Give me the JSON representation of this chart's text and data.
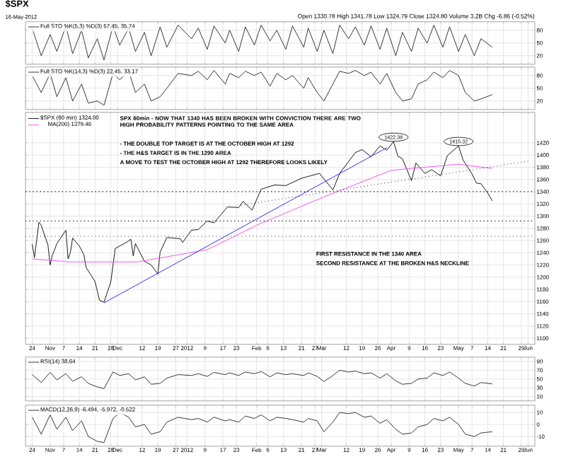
{
  "chart_data": [
    {
      "type": "line",
      "title": "$SPX",
      "subtitle": "16-May-2012",
      "annotations": [
        "Open 1330.78 High 1341.78 Low 1324.79 Close 1324.80 Volume 3.2B Chg -6.86 (-0.52%)"
      ],
      "xlim": [
        "2011-10-21",
        "2012-06-04"
      ],
      "ylim": [
        0,
        100
      ],
      "yticks": [
        20,
        50,
        80
      ],
      "grid": true,
      "legend": "top left",
      "tick_labels": "y",
      "xticks": [
        {
          "value": "2011-10-24",
          "label": null
        },
        {
          "value": "2011-11-01",
          "label": null
        },
        {
          "value": "2011-11-07",
          "label": null
        },
        {
          "value": "2011-11-14",
          "label": null
        },
        {
          "value": "2011-11-21",
          "label": null
        },
        {
          "value": "2011-11-28",
          "label": null
        },
        {
          "value": "2011-12-01",
          "label": null
        },
        {
          "value": "2011-12-12",
          "label": null
        },
        {
          "value": "2011-12-19",
          "label": null
        },
        {
          "value": "2011-12-27",
          "label": null
        },
        {
          "value": "2012-01-01",
          "label": null
        },
        {
          "value": "2012-01-09",
          "label": null
        },
        {
          "value": "2012-01-17",
          "label": null
        },
        {
          "value": "2012-01-23",
          "label": null
        },
        {
          "value": "2012-02-01",
          "label": null
        },
        {
          "value": "2012-02-06",
          "label": null
        },
        {
          "value": "2012-02-13",
          "label": null
        },
        {
          "value": "2012-02-21",
          "label": null
        },
        {
          "value": "2012-02-27",
          "label": null
        },
        {
          "value": "2012-03-01",
          "label": null
        },
        {
          "value": "2012-03-12",
          "label": null
        },
        {
          "value": "2012-03-19",
          "label": null
        },
        {
          "value": "2012-03-26",
          "label": null
        },
        {
          "value": "2012-04-01",
          "label": null
        },
        {
          "value": "2012-04-09",
          "label": null
        },
        {
          "value": "2012-04-16",
          "label": null
        },
        {
          "value": "2012-04-23",
          "label": null
        },
        {
          "value": "2012-05-01",
          "label": null
        },
        {
          "value": "2012-05-07",
          "label": null
        },
        {
          "value": "2012-05-14",
          "label": null
        },
        {
          "value": "2012-05-21",
          "label": null
        },
        {
          "value": "2012-05-29",
          "label": null
        },
        {
          "value": "2012-06-01",
          "label": null
        }
      ],
      "x": [
        "2011-10-24",
        "2011-10-28",
        "2011-11-01",
        "2011-11-04",
        "2011-11-08",
        "2011-11-11",
        "2011-11-15",
        "2011-11-18",
        "2011-11-22",
        "2011-11-25",
        "2011-11-29",
        "2011-12-02",
        "2011-12-06",
        "2011-12-09",
        "2011-12-13",
        "2011-12-16",
        "2011-12-20",
        "2011-12-23",
        "2011-12-28",
        "2012-01-03",
        "2012-01-06",
        "2012-01-10",
        "2012-01-13",
        "2012-01-18",
        "2012-01-20",
        "2012-01-24",
        "2012-01-27",
        "2012-01-31",
        "2012-02-03",
        "2012-02-07",
        "2012-02-10",
        "2012-02-14",
        "2012-02-17",
        "2012-02-22",
        "2012-02-24",
        "2012-02-28",
        "2012-03-02",
        "2012-03-06",
        "2012-03-09",
        "2012-03-13",
        "2012-03-16",
        "2012-03-20",
        "2012-03-23",
        "2012-03-27",
        "2012-03-30",
        "2012-04-03",
        "2012-04-06",
        "2012-04-10",
        "2012-04-13",
        "2012-04-17",
        "2012-04-20",
        "2012-04-24",
        "2012-04-27",
        "2012-05-01",
        "2012-05-04",
        "2012-05-08",
        "2012-05-11",
        "2012-05-16"
      ],
      "series": [
        {
          "name": "Full STO %K(5,3) %D(3) 57.45, 35.74",
          "color": "#222222",
          "values": [
            85,
            20,
            70,
            30,
            90,
            25,
            80,
            15,
            60,
            10,
            90,
            45,
            85,
            30,
            75,
            20,
            88,
            40,
            92,
            60,
            85,
            35,
            90,
            50,
            80,
            30,
            88,
            45,
            92,
            55,
            80,
            35,
            90,
            40,
            85,
            30,
            80,
            25,
            92,
            60,
            88,
            45,
            90,
            35,
            85,
            20,
            75,
            30,
            85,
            50,
            92,
            40,
            88,
            30,
            70,
            20,
            60,
            40
          ]
        }
      ]
    },
    {
      "type": "line",
      "xlim": [
        "2011-10-21",
        "2012-06-04"
      ],
      "ylim": [
        0,
        100
      ],
      "yticks": [
        20,
        50,
        80
      ],
      "grid": true,
      "legend": "top left",
      "tick_labels": "y",
      "xticks": [
        {
          "value": "2011-10-24",
          "label": null
        },
        {
          "value": "2011-11-01",
          "label": null
        },
        {
          "value": "2011-11-07",
          "label": null
        },
        {
          "value": "2011-11-14",
          "label": null
        },
        {
          "value": "2011-11-21",
          "label": null
        },
        {
          "value": "2011-11-28",
          "label": null
        },
        {
          "value": "2011-12-01",
          "label": null
        },
        {
          "value": "2011-12-12",
          "label": null
        },
        {
          "value": "2011-12-19",
          "label": null
        },
        {
          "value": "2011-12-27",
          "label": null
        },
        {
          "value": "2012-01-01",
          "label": null
        },
        {
          "value": "2012-01-09",
          "label": null
        },
        {
          "value": "2012-01-17",
          "label": null
        },
        {
          "value": "2012-01-23",
          "label": null
        },
        {
          "value": "2012-02-01",
          "label": null
        },
        {
          "value": "2012-02-06",
          "label": null
        },
        {
          "value": "2012-02-13",
          "label": null
        },
        {
          "value": "2012-02-21",
          "label": null
        },
        {
          "value": "2012-02-27",
          "label": null
        },
        {
          "value": "2012-03-01",
          "label": null
        },
        {
          "value": "2012-03-12",
          "label": null
        },
        {
          "value": "2012-03-19",
          "label": null
        },
        {
          "value": "2012-03-26",
          "label": null
        },
        {
          "value": "2012-04-01",
          "label": null
        },
        {
          "value": "2012-04-09",
          "label": null
        },
        {
          "value": "2012-04-16",
          "label": null
        },
        {
          "value": "2012-04-23",
          "label": null
        },
        {
          "value": "2012-05-01",
          "label": null
        },
        {
          "value": "2012-05-07",
          "label": null
        },
        {
          "value": "2012-05-14",
          "label": null
        },
        {
          "value": "2012-05-21",
          "label": null
        },
        {
          "value": "2012-05-29",
          "label": null
        },
        {
          "value": "2012-06-01",
          "label": null
        }
      ],
      "x": [
        "2011-10-24",
        "2011-10-28",
        "2011-11-01",
        "2011-11-04",
        "2011-11-08",
        "2011-11-11",
        "2011-11-15",
        "2011-11-18",
        "2011-11-22",
        "2011-11-25",
        "2011-11-29",
        "2011-12-02",
        "2011-12-06",
        "2011-12-09",
        "2011-12-13",
        "2011-12-16",
        "2011-12-20",
        "2011-12-23",
        "2011-12-28",
        "2012-01-03",
        "2012-01-06",
        "2012-01-10",
        "2012-01-13",
        "2012-01-18",
        "2012-01-20",
        "2012-01-24",
        "2012-01-27",
        "2012-01-31",
        "2012-02-03",
        "2012-02-07",
        "2012-02-10",
        "2012-02-14",
        "2012-02-17",
        "2012-02-22",
        "2012-02-24",
        "2012-02-28",
        "2012-03-02",
        "2012-03-06",
        "2012-03-09",
        "2012-03-13",
        "2012-03-16",
        "2012-03-20",
        "2012-03-23",
        "2012-03-27",
        "2012-03-30",
        "2012-04-03",
        "2012-04-06",
        "2012-04-10",
        "2012-04-13",
        "2012-04-17",
        "2012-04-20",
        "2012-04-24",
        "2012-04-27",
        "2012-05-01",
        "2012-05-04",
        "2012-05-08",
        "2012-05-11",
        "2012-05-16"
      ],
      "series": [
        {
          "name": "Full STO %K(14,3) %D(3) 22.45, 33.17",
          "color": "#222222",
          "values": [
            80,
            40,
            85,
            30,
            75,
            20,
            60,
            15,
            20,
            10,
            85,
            70,
            90,
            40,
            60,
            20,
            30,
            50,
            85,
            80,
            90,
            70,
            92,
            60,
            85,
            75,
            90,
            80,
            88,
            55,
            85,
            70,
            80,
            50,
            75,
            40,
            20,
            60,
            90,
            85,
            92,
            80,
            88,
            60,
            85,
            40,
            20,
            25,
            60,
            70,
            88,
            75,
            92,
            80,
            40,
            20,
            25,
            35
          ]
        }
      ]
    },
    {
      "type": "line",
      "annotations": [
        "SPX 60min - NOW THAT 1340 HAS BEEN BROKEN WITH CONVICTION THERE ARE TWO HIGH PROBABILITY PATTERNS POINTING TO THE SAME AREA",
        "- THE DOUBLE TOP TARGET IS AT THE OCTOBER HIGH AT 1292",
        "- THE H&S TARGET IS IN THE 1290 AREA",
        "A MOVE TO TEST THE OCTOBER HIGH AT 1292 THEREFORE LOOKS LIKELY",
        "FIRST RESISTANCE IN THE 1340 AREA",
        "SECOND RESISTANCE AT THE BROKEN H&S NECKLINE",
        {
          "text": "1422.38",
          "x": "2012-04-02",
          "y": 1422
        },
        {
          "text": "1415.32",
          "x": "2012-05-01",
          "y": 1415
        }
      ],
      "xlim": [
        "2011-10-21",
        "2012-06-04"
      ],
      "ylim": [
        1090,
        1470
      ],
      "yticks": [
        1100,
        1120,
        1140,
        1160,
        1180,
        1200,
        1220,
        1240,
        1260,
        1280,
        1300,
        1320,
        1340,
        1360,
        1380,
        1400,
        1420
      ],
      "grid": true,
      "legend": "top left",
      "xticks": [
        {
          "value": "2011-10-24",
          "label": "24"
        },
        {
          "value": "2011-11-01",
          "label": "Nov"
        },
        {
          "value": "2011-11-07",
          "label": "7"
        },
        {
          "value": "2011-11-14",
          "label": "14"
        },
        {
          "value": "2011-11-21",
          "label": "21"
        },
        {
          "value": "2011-11-28",
          "label": "28"
        },
        {
          "value": "2011-12-01",
          "label": "Dec"
        },
        {
          "value": "2011-12-12",
          "label": "12"
        },
        {
          "value": "2011-12-19",
          "label": "19"
        },
        {
          "value": "2011-12-27",
          "label": "27"
        },
        {
          "value": "2012-01-01",
          "label": "2012"
        },
        {
          "value": "2012-01-09",
          "label": "9"
        },
        {
          "value": "2012-01-17",
          "label": "17"
        },
        {
          "value": "2012-01-23",
          "label": "23"
        },
        {
          "value": "2012-02-01",
          "label": "Feb"
        },
        {
          "value": "2012-02-06",
          "label": "6"
        },
        {
          "value": "2012-02-13",
          "label": "13"
        },
        {
          "value": "2012-02-21",
          "label": "21"
        },
        {
          "value": "2012-02-27",
          "label": "27"
        },
        {
          "value": "2012-03-01",
          "label": "Mar"
        },
        {
          "value": "2012-03-12",
          "label": "12"
        },
        {
          "value": "2012-03-19",
          "label": "19"
        },
        {
          "value": "2012-03-26",
          "label": "26"
        },
        {
          "value": "2012-04-01",
          "label": "Apr"
        },
        {
          "value": "2012-04-09",
          "label": "9"
        },
        {
          "value": "2012-04-16",
          "label": "16"
        },
        {
          "value": "2012-04-23",
          "label": "23"
        },
        {
          "value": "2012-05-01",
          "label": "May"
        },
        {
          "value": "2012-05-07",
          "label": "7"
        },
        {
          "value": "2012-05-14",
          "label": "14"
        },
        {
          "value": "2012-05-21",
          "label": "21"
        },
        {
          "value": "2012-05-29",
          "label": "29"
        },
        {
          "value": "2012-06-01",
          "label": "Jun"
        }
      ],
      "ref_lines": [
        {
          "axis": "y",
          "value": 1340,
          "line_style": "dotted",
          "color": "#000000"
        },
        {
          "axis": "y",
          "value": 1292,
          "line_style": "dotted",
          "color": "#000000"
        },
        {
          "axis": "y",
          "value": 1267,
          "line_style": "dotted",
          "color": "#555555"
        }
      ],
      "series": [
        {
          "name": "$SPX (60 min) 1324.80",
          "color": "#000000",
          "x": [
            "2011-10-24",
            "2011-10-25",
            "2011-10-27",
            "2011-10-28",
            "2011-10-31",
            "2011-11-01",
            "2011-11-02",
            "2011-11-04",
            "2011-11-08",
            "2011-11-09",
            "2011-11-10",
            "2011-11-11",
            "2011-11-14",
            "2011-11-16",
            "2011-11-17",
            "2011-11-21",
            "2011-11-23",
            "2011-11-25",
            "2011-11-28",
            "2011-11-30",
            "2011-12-05",
            "2011-12-07",
            "2011-12-08",
            "2011-12-09",
            "2011-12-13",
            "2011-12-16",
            "2011-12-19",
            "2011-12-20",
            "2011-12-23",
            "2011-12-29",
            "2011-12-30",
            "2012-01-03",
            "2012-01-06",
            "2012-01-10",
            "2012-01-13",
            "2012-01-19",
            "2012-01-24",
            "2012-01-26",
            "2012-01-30",
            "2012-02-03",
            "2012-02-09",
            "2012-02-14",
            "2012-02-21",
            "2012-02-24",
            "2012-02-29",
            "2012-03-06",
            "2012-03-09",
            "2012-03-16",
            "2012-03-19",
            "2012-03-23",
            "2012-03-27",
            "2012-03-30",
            "2012-04-02",
            "2012-04-04",
            "2012-04-06",
            "2012-04-10",
            "2012-04-12",
            "2012-04-16",
            "2012-04-19",
            "2012-04-23",
            "2012-04-26",
            "2012-05-01",
            "2012-05-03",
            "2012-05-07",
            "2012-05-09",
            "2012-05-11",
            "2012-05-14",
            "2012-05-16"
          ],
          "values": [
            1254,
            1232,
            1290,
            1285,
            1253,
            1220,
            1236,
            1255,
            1277,
            1230,
            1240,
            1264,
            1251,
            1237,
            1216,
            1193,
            1162,
            1159,
            1192,
            1247,
            1257,
            1262,
            1235,
            1255,
            1226,
            1220,
            1205,
            1241,
            1265,
            1263,
            1257,
            1277,
            1278,
            1292,
            1289,
            1315,
            1314,
            1324,
            1310,
            1344,
            1351,
            1350,
            1362,
            1365,
            1370,
            1343,
            1370,
            1404,
            1409,
            1397,
            1415,
            1408,
            1422,
            1398,
            1394,
            1358,
            1387,
            1370,
            1376,
            1366,
            1399,
            1415,
            1392,
            1369,
            1354,
            1353,
            1338,
            1325
          ]
        },
        {
          "name": "MA(200) 1379.46",
          "color": "#ee44ee",
          "x": [
            "2011-10-24",
            "2011-11-10",
            "2011-12-10",
            "2012-01-10",
            "2012-02-01",
            "2012-03-01",
            "2012-04-01",
            "2012-05-01",
            "2012-05-16"
          ],
          "values": [
            1230,
            1225,
            1225,
            1245,
            1285,
            1330,
            1375,
            1385,
            1378
          ]
        },
        {
          "color": "#1a1aee",
          "x": [
            "2011-11-25",
            "2012-03-30"
          ],
          "values": [
            1158,
            1412
          ]
        },
        {
          "color": "#000000",
          "line_style": "dotted",
          "x": [
            "2012-01-25",
            "2012-06-01"
          ],
          "values": [
            1318,
            1390
          ]
        }
      ]
    },
    {
      "type": "line",
      "xlim": [
        "2011-10-21",
        "2012-06-04"
      ],
      "ylim": [
        0,
        100
      ],
      "yticks": [
        10,
        30,
        50,
        70,
        90
      ],
      "grid": true,
      "legend": "top left",
      "tick_labels": "y",
      "xticks": [
        {
          "value": "2011-10-24",
          "label": null
        },
        {
          "value": "2011-11-01",
          "label": null
        },
        {
          "value": "2011-11-07",
          "label": null
        },
        {
          "value": "2011-11-14",
          "label": null
        },
        {
          "value": "2011-11-21",
          "label": null
        },
        {
          "value": "2011-11-28",
          "label": null
        },
        {
          "value": "2011-12-01",
          "label": null
        },
        {
          "value": "2011-12-12",
          "label": null
        },
        {
          "value": "2011-12-19",
          "label": null
        },
        {
          "value": "2011-12-27",
          "label": null
        },
        {
          "value": "2012-01-01",
          "label": null
        },
        {
          "value": "2012-01-09",
          "label": null
        },
        {
          "value": "2012-01-17",
          "label": null
        },
        {
          "value": "2012-01-23",
          "label": null
        },
        {
          "value": "2012-02-01",
          "label": null
        },
        {
          "value": "2012-02-06",
          "label": null
        },
        {
          "value": "2012-02-13",
          "label": null
        },
        {
          "value": "2012-02-21",
          "label": null
        },
        {
          "value": "2012-02-27",
          "label": null
        },
        {
          "value": "2012-03-01",
          "label": null
        },
        {
          "value": "2012-03-12",
          "label": null
        },
        {
          "value": "2012-03-19",
          "label": null
        },
        {
          "value": "2012-03-26",
          "label": null
        },
        {
          "value": "2012-04-01",
          "label": null
        },
        {
          "value": "2012-04-09",
          "label": null
        },
        {
          "value": "2012-04-16",
          "label": null
        },
        {
          "value": "2012-04-23",
          "label": null
        },
        {
          "value": "2012-05-01",
          "label": null
        },
        {
          "value": "2012-05-07",
          "label": null
        },
        {
          "value": "2012-05-14",
          "label": null
        },
        {
          "value": "2012-05-21",
          "label": null
        },
        {
          "value": "2012-05-29",
          "label": null
        },
        {
          "value": "2012-06-01",
          "label": null
        }
      ],
      "x": [
        "2011-10-24",
        "2011-10-28",
        "2011-11-01",
        "2011-11-04",
        "2011-11-08",
        "2011-11-11",
        "2011-11-15",
        "2011-11-18",
        "2011-11-22",
        "2011-11-25",
        "2011-11-29",
        "2011-12-02",
        "2011-12-06",
        "2011-12-09",
        "2011-12-13",
        "2011-12-16",
        "2011-12-20",
        "2011-12-23",
        "2011-12-28",
        "2012-01-03",
        "2012-01-06",
        "2012-01-10",
        "2012-01-13",
        "2012-01-18",
        "2012-01-20",
        "2012-01-24",
        "2012-01-27",
        "2012-01-31",
        "2012-02-03",
        "2012-02-07",
        "2012-02-10",
        "2012-02-14",
        "2012-02-17",
        "2012-02-22",
        "2012-02-24",
        "2012-02-28",
        "2012-03-02",
        "2012-03-06",
        "2012-03-09",
        "2012-03-13",
        "2012-03-16",
        "2012-03-20",
        "2012-03-23",
        "2012-03-27",
        "2012-03-30",
        "2012-04-03",
        "2012-04-06",
        "2012-04-10",
        "2012-04-13",
        "2012-04-17",
        "2012-04-20",
        "2012-04-24",
        "2012-04-27",
        "2012-05-01",
        "2012-05-04",
        "2012-05-08",
        "2012-05-11",
        "2012-05-16"
      ],
      "series": [
        {
          "name": "RSI(14) 38.64",
          "color": "#222222",
          "values": [
            60,
            42,
            65,
            48,
            62,
            45,
            55,
            40,
            32,
            28,
            66,
            58,
            62,
            48,
            55,
            38,
            40,
            52,
            60,
            58,
            62,
            56,
            65,
            60,
            64,
            58,
            66,
            62,
            67,
            55,
            64,
            60,
            62,
            58,
            64,
            56,
            44,
            58,
            70,
            66,
            68,
            62,
            64,
            52,
            62,
            46,
            38,
            40,
            50,
            52,
            64,
            58,
            66,
            52,
            40,
            34,
            42,
            39
          ]
        }
      ]
    },
    {
      "type": "line",
      "xlim": [
        "2011-10-21",
        "2012-06-04"
      ],
      "ylim": [
        -18,
        16
      ],
      "yticks": [
        -10,
        0,
        10
      ],
      "grid": true,
      "legend": "top left",
      "xticks": [
        {
          "value": "2011-10-24",
          "label": "24"
        },
        {
          "value": "2011-11-01",
          "label": "Nov"
        },
        {
          "value": "2011-11-07",
          "label": "7"
        },
        {
          "value": "2011-11-14",
          "label": "14"
        },
        {
          "value": "2011-11-21",
          "label": "21"
        },
        {
          "value": "2011-11-28",
          "label": "28"
        },
        {
          "value": "2011-12-01",
          "label": "Dec"
        },
        {
          "value": "2011-12-12",
          "label": "12"
        },
        {
          "value": "2011-12-19",
          "label": "19"
        },
        {
          "value": "2011-12-27",
          "label": "27"
        },
        {
          "value": "2012-01-01",
          "label": "2012"
        },
        {
          "value": "2012-01-09",
          "label": "9"
        },
        {
          "value": "2012-01-17",
          "label": "17"
        },
        {
          "value": "2012-01-23",
          "label": "23"
        },
        {
          "value": "2012-02-01",
          "label": "Feb"
        },
        {
          "value": "2012-02-06",
          "label": "6"
        },
        {
          "value": "2012-02-13",
          "label": "13"
        },
        {
          "value": "2012-02-21",
          "label": "21"
        },
        {
          "value": "2012-02-27",
          "label": "27"
        },
        {
          "value": "2012-03-01",
          "label": "Mar"
        },
        {
          "value": "2012-03-12",
          "label": "12"
        },
        {
          "value": "2012-03-19",
          "label": "19"
        },
        {
          "value": "2012-03-26",
          "label": "26"
        },
        {
          "value": "2012-04-01",
          "label": "Apr"
        },
        {
          "value": "2012-04-09",
          "label": "9"
        },
        {
          "value": "2012-04-16",
          "label": "16"
        },
        {
          "value": "2012-04-23",
          "label": "23"
        },
        {
          "value": "2012-05-01",
          "label": "May"
        },
        {
          "value": "2012-05-07",
          "label": "7"
        },
        {
          "value": "2012-05-14",
          "label": "14"
        },
        {
          "value": "2012-05-21",
          "label": "21"
        },
        {
          "value": "2012-05-29",
          "label": "29"
        },
        {
          "value": "2012-06-01",
          "label": "Jun"
        }
      ],
      "x": [
        "2011-10-24",
        "2011-10-28",
        "2011-11-01",
        "2011-11-04",
        "2011-11-08",
        "2011-11-11",
        "2011-11-15",
        "2011-11-18",
        "2011-11-22",
        "2011-11-25",
        "2011-11-29",
        "2011-12-02",
        "2011-12-06",
        "2011-12-09",
        "2011-12-13",
        "2011-12-16",
        "2011-12-20",
        "2011-12-23",
        "2011-12-28",
        "2012-01-03",
        "2012-01-06",
        "2012-01-10",
        "2012-01-13",
        "2012-01-18",
        "2012-01-20",
        "2012-01-24",
        "2012-01-27",
        "2012-01-31",
        "2012-02-03",
        "2012-02-07",
        "2012-02-10",
        "2012-02-14",
        "2012-02-17",
        "2012-02-22",
        "2012-02-24",
        "2012-02-28",
        "2012-03-02",
        "2012-03-06",
        "2012-03-09",
        "2012-03-13",
        "2012-03-16",
        "2012-03-20",
        "2012-03-23",
        "2012-03-27",
        "2012-03-30",
        "2012-04-03",
        "2012-04-06",
        "2012-04-10",
        "2012-04-13",
        "2012-04-17",
        "2012-04-20",
        "2012-04-24",
        "2012-04-27",
        "2012-05-01",
        "2012-05-04",
        "2012-05-08",
        "2012-05-11",
        "2012-05-16"
      ],
      "series": [
        {
          "name": "MACD(12,26,9) -6.494, -5.972, -0.522",
          "color": "#222222",
          "values": [
            6,
            -8,
            8,
            -4,
            6,
            -5,
            3,
            -10,
            -14,
            -15,
            5,
            10,
            6,
            -2,
            0,
            -8,
            -6,
            2,
            6,
            4,
            5,
            2,
            6,
            3,
            4,
            2,
            7,
            5,
            8,
            3,
            6,
            5,
            4,
            2,
            5,
            3,
            -6,
            2,
            10,
            9,
            10,
            6,
            7,
            1,
            4,
            -4,
            -8,
            -7,
            -2,
            0,
            5,
            3,
            6,
            0,
            -8,
            -10,
            -7,
            -6
          ]
        }
      ]
    }
  ]
}
